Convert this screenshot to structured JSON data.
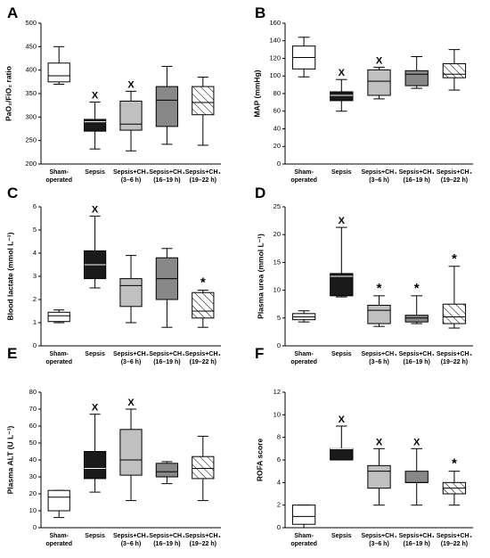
{
  "colors": {
    "sham": "#ffffff",
    "sepsis": "#1a1a1a",
    "early": "#c0c0c0",
    "mid": "#888888",
    "late": "hatched",
    "stroke": "#000000"
  },
  "chart_data": [
    {
      "type": "box",
      "panel": "A",
      "ylabel": "PaO₂/FiO₂ ratio",
      "ylim": [
        200,
        500
      ],
      "yticks": [
        "200",
        "250",
        "300",
        "350",
        "400",
        "450",
        "500"
      ],
      "categories": [
        {
          "line1": "Sham-",
          "line2": "operated"
        },
        {
          "line1": "Sepsis",
          "line2": ""
        },
        {
          "line1": "Sepsis+CH₄",
          "line2": "(3–6 h)"
        },
        {
          "line1": "Sepsis+CH₄",
          "line2": "(16–19 h)"
        },
        {
          "line1": "Sepsis+CH₄",
          "line2": "(19–22 h)"
        }
      ],
      "boxes": [
        {
          "min": 370,
          "q1": 375,
          "median": 388,
          "q3": 415,
          "max": 450
        },
        {
          "min": 232,
          "q1": 270,
          "median": 290,
          "q3": 295,
          "max": 332
        },
        {
          "min": 228,
          "q1": 272,
          "median": 285,
          "q3": 334,
          "max": 355
        },
        {
          "min": 242,
          "q1": 280,
          "median": 336,
          "q3": 365,
          "max": 408
        },
        {
          "min": 240,
          "q1": 305,
          "median": 331,
          "q3": 365,
          "max": 385
        }
      ],
      "markers": [
        "",
        "X",
        "X",
        "",
        ""
      ]
    },
    {
      "type": "box",
      "panel": "B",
      "ylabel": "MAP (mmHg)",
      "ylim": [
        0,
        160
      ],
      "yticks": [
        "0",
        "20",
        "40",
        "60",
        "80",
        "100",
        "120",
        "140",
        "160"
      ],
      "categories": [
        {
          "line1": "Sham-",
          "line2": "operated"
        },
        {
          "line1": "Sepsis",
          "line2": ""
        },
        {
          "line1": "Sepsis+CH₄",
          "line2": "(3–6 h)"
        },
        {
          "line1": "Sepsis+CH₄",
          "line2": "(16–19 h)"
        },
        {
          "line1": "Sepsis+CH₄",
          "line2": "(19–22 h)"
        }
      ],
      "boxes": [
        {
          "min": 99,
          "q1": 108,
          "median": 121,
          "q3": 134,
          "max": 144
        },
        {
          "min": 60,
          "q1": 72,
          "median": 78,
          "q3": 82,
          "max": 96
        },
        {
          "min": 74,
          "q1": 78,
          "median": 94,
          "q3": 107,
          "max": 110
        },
        {
          "min": 86,
          "q1": 89,
          "median": 102,
          "q3": 106,
          "max": 122
        },
        {
          "min": 84,
          "q1": 98,
          "median": 102,
          "q3": 114,
          "max": 130
        }
      ],
      "markers": [
        "",
        "X",
        "X",
        "",
        ""
      ]
    },
    {
      "type": "box",
      "panel": "C",
      "ylabel": "Blood lactate (mmol L⁻¹)",
      "ylim": [
        0,
        6
      ],
      "yticks": [
        "0",
        "1",
        "2",
        "3",
        "4",
        "5",
        "6"
      ],
      "categories": [
        {
          "line1": "Sham-",
          "line2": "operated"
        },
        {
          "line1": "Sepsis",
          "line2": ""
        },
        {
          "line1": "Sepsis+CH₄",
          "line2": "(3–6 h)"
        },
        {
          "line1": "Sepsis+CH₄",
          "line2": "(16–19 h)"
        },
        {
          "line1": "Sepsis+CH₄",
          "line2": "(19–22 h)"
        }
      ],
      "boxes": [
        {
          "min": 1.0,
          "q1": 1.05,
          "median": 1.3,
          "q3": 1.45,
          "max": 1.55
        },
        {
          "min": 2.5,
          "q1": 2.9,
          "median": 3.5,
          "q3": 4.1,
          "max": 5.6
        },
        {
          "min": 1.0,
          "q1": 1.7,
          "median": 2.6,
          "q3": 2.9,
          "max": 3.9
        },
        {
          "min": 0.8,
          "q1": 2.0,
          "median": 2.9,
          "q3": 3.8,
          "max": 4.2
        },
        {
          "min": 0.8,
          "q1": 1.2,
          "median": 1.5,
          "q3": 2.3,
          "max": 2.4
        }
      ],
      "markers": [
        "",
        "X",
        "",
        "",
        "*"
      ]
    },
    {
      "type": "box",
      "panel": "D",
      "ylabel": "Plasma urea (mmol L⁻¹)",
      "ylim": [
        0,
        25
      ],
      "yticks": [
        "0",
        "5",
        "10",
        "15",
        "20",
        "25"
      ],
      "categories": [
        {
          "line1": "Sham-",
          "line2": "operated"
        },
        {
          "line1": "Sepsis",
          "line2": ""
        },
        {
          "line1": "Sepsis+CH₄",
          "line2": "(3–6 h)"
        },
        {
          "line1": "Sepsis+CH₄",
          "line2": "(16–19 h)"
        },
        {
          "line1": "Sepsis+CH₄",
          "line2": "(19–22 h)"
        }
      ],
      "boxes": [
        {
          "min": 4.3,
          "q1": 4.7,
          "median": 5.2,
          "q3": 5.8,
          "max": 6.3
        },
        {
          "min": 8.8,
          "q1": 9.0,
          "median": 12.5,
          "q3": 13.0,
          "max": 21.3
        },
        {
          "min": 3.5,
          "q1": 4.0,
          "median": 6.4,
          "q3": 7.3,
          "max": 9.0
        },
        {
          "min": 4.0,
          "q1": 4.3,
          "median": 5.0,
          "q3": 5.5,
          "max": 9.0
        },
        {
          "min": 3.2,
          "q1": 4.0,
          "median": 5.2,
          "q3": 7.5,
          "max": 14.3
        }
      ],
      "markers": [
        "",
        "X",
        "*",
        "*",
        "*"
      ]
    },
    {
      "type": "box",
      "panel": "E",
      "ylabel": "Plasma ALT (U L⁻¹)",
      "ylim": [
        0,
        80
      ],
      "yticks": [
        "0",
        "10",
        "20",
        "30",
        "40",
        "50",
        "60",
        "70",
        "80"
      ],
      "categories": [
        {
          "line1": "Sham-",
          "line2": "operated"
        },
        {
          "line1": "Sepsis",
          "line2": ""
        },
        {
          "line1": "Sepsis+CH₄",
          "line2": "(3–6 h)"
        },
        {
          "line1": "Sepsis+CH₄",
          "line2": "(16–19 h)"
        },
        {
          "line1": "Sepsis+CH₄",
          "line2": "(19–22 h)"
        }
      ],
      "boxes": [
        {
          "min": 6,
          "q1": 10,
          "median": 18,
          "q3": 22,
          "max": 22
        },
        {
          "min": 21,
          "q1": 29,
          "median": 35,
          "q3": 45,
          "max": 67
        },
        {
          "min": 16,
          "q1": 31,
          "median": 40,
          "q3": 58,
          "max": 70
        },
        {
          "min": 26,
          "q1": 30,
          "median": 33,
          "q3": 38,
          "max": 39
        },
        {
          "min": 16,
          "q1": 29,
          "median": 35,
          "q3": 42,
          "max": 54
        }
      ],
      "markers": [
        "",
        "X",
        "X",
        "",
        ""
      ]
    },
    {
      "type": "box",
      "panel": "F",
      "ylabel": "ROFA score",
      "ylim": [
        0,
        12
      ],
      "yticks": [
        "0",
        "2",
        "4",
        "6",
        "8",
        "10",
        "12"
      ],
      "categories": [
        {
          "line1": "Sham-",
          "line2": "operated"
        },
        {
          "line1": "Sepsis",
          "line2": ""
        },
        {
          "line1": "Sepsis+CH₄",
          "line2": "(3–6 h)"
        },
        {
          "line1": "Sepsis+CH₄",
          "line2": "(16–19 h)"
        },
        {
          "line1": "Sepsis+CH₄",
          "line2": "(19–22 h)"
        }
      ],
      "boxes": [
        {
          "min": 0,
          "q1": 0.3,
          "median": 1,
          "q3": 2,
          "max": 2
        },
        {
          "min": 6,
          "q1": 6,
          "median": 7,
          "q3": 7,
          "max": 9
        },
        {
          "min": 2,
          "q1": 3.5,
          "median": 5,
          "q3": 5.5,
          "max": 7
        },
        {
          "min": 2,
          "q1": 4,
          "median": 4,
          "q3": 5,
          "max": 7
        },
        {
          "min": 2,
          "q1": 3,
          "median": 3.5,
          "q3": 4,
          "max": 5
        }
      ],
      "markers": [
        "",
        "X",
        "X",
        "X",
        "*"
      ]
    }
  ]
}
